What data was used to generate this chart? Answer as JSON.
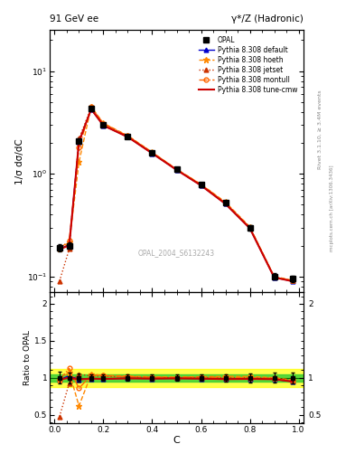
{
  "title_left": "91 GeV ee",
  "title_right": "γ*/Z (Hadronic)",
  "ylabel_main": "1/σ dσ/dC",
  "ylabel_ratio": "Ratio to OPAL",
  "xlabel": "C",
  "right_label_top": "Rivet 3.1.10, ≥ 3.4M events",
  "right_label_bottom": "mcplots.cern.ch [arXiv:1306.3436]",
  "watermark": "OPAL_2004_S6132243",
  "C_data": [
    0.02,
    0.06,
    0.1,
    0.15,
    0.2,
    0.3,
    0.4,
    0.5,
    0.6,
    0.7,
    0.8,
    0.9,
    0.975
  ],
  "opal_y": [
    0.19,
    0.2,
    2.1,
    4.3,
    3.0,
    2.3,
    1.6,
    1.1,
    0.78,
    0.52,
    0.3,
    0.1,
    0.095
  ],
  "opal_yerr": [
    0.015,
    0.015,
    0.12,
    0.18,
    0.12,
    0.09,
    0.07,
    0.05,
    0.035,
    0.025,
    0.018,
    0.007,
    0.007
  ],
  "C_mc": [
    0.02,
    0.06,
    0.1,
    0.15,
    0.2,
    0.3,
    0.4,
    0.5,
    0.6,
    0.7,
    0.8,
    0.9,
    0.975
  ],
  "default_y": [
    0.185,
    0.205,
    2.05,
    4.25,
    2.95,
    2.28,
    1.58,
    1.09,
    0.77,
    0.51,
    0.295,
    0.098,
    0.09
  ],
  "hoeth_y": [
    0.185,
    0.215,
    1.3,
    4.5,
    3.1,
    2.35,
    1.62,
    1.11,
    0.79,
    0.53,
    0.305,
    0.1,
    0.092
  ],
  "jetset_y": [
    0.09,
    0.185,
    2.2,
    4.4,
    3.05,
    2.32,
    1.6,
    1.1,
    0.78,
    0.52,
    0.3,
    0.099,
    0.091
  ],
  "montull_y": [
    0.185,
    0.225,
    1.8,
    4.45,
    3.08,
    2.33,
    1.61,
    1.1,
    0.79,
    0.52,
    0.3,
    0.099,
    0.091
  ],
  "tunecmw_y": [
    0.185,
    0.2,
    2.05,
    4.25,
    2.95,
    2.28,
    1.58,
    1.09,
    0.77,
    0.51,
    0.295,
    0.098,
    0.09
  ],
  "color_default": "#0000cc",
  "color_hoeth": "#ff8800",
  "color_jetset": "#cc3300",
  "color_montull": "#ff6600",
  "color_tunecmw": "#cc0000",
  "color_opal": "#000000",
  "ratio_band_green": [
    0.95,
    1.05
  ],
  "ratio_band_yellow": [
    0.88,
    1.12
  ],
  "ylim_main": [
    0.07,
    25
  ],
  "ylim_ratio": [
    0.38,
    2.15
  ],
  "xlim": [
    -0.02,
    1.02
  ]
}
